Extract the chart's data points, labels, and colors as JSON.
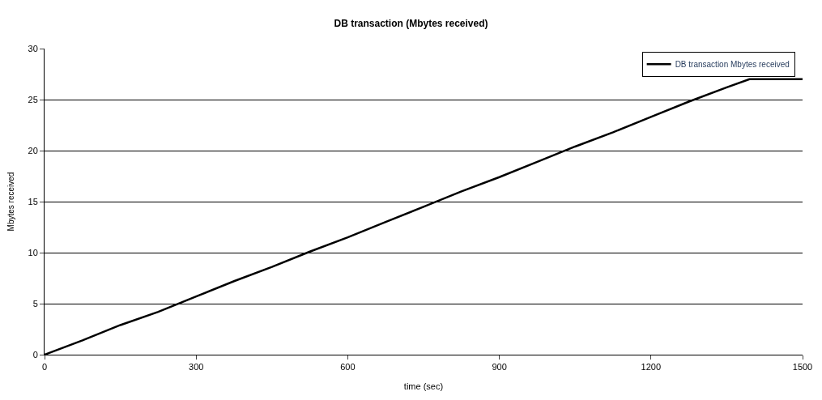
{
  "chart_data": {
    "type": "line",
    "title": "DB transaction (Mbytes received)",
    "xlabel": "time (sec)",
    "ylabel": "Mbytes received",
    "x": [
      0,
      75,
      150,
      225,
      300,
      375,
      450,
      525,
      600,
      675,
      750,
      825,
      900,
      975,
      1050,
      1125,
      1200,
      1275,
      1350,
      1395,
      1500
    ],
    "series": [
      {
        "name": "DB transaction Mbytes received",
        "color": "#000000",
        "values": [
          0,
          1.4,
          2.9,
          4.2,
          5.7,
          7.2,
          8.6,
          10.1,
          11.5,
          13,
          14.5,
          16,
          17.4,
          18.9,
          20.4,
          21.8,
          23.3,
          24.8,
          26.2,
          27,
          27
        ]
      }
    ],
    "xlim": [
      0,
      1500
    ],
    "xticks": [
      0,
      300,
      600,
      900,
      1200,
      1500
    ],
    "ylim": [
      0,
      30
    ],
    "yticks": [
      0,
      5,
      10,
      15,
      20,
      25,
      30
    ],
    "grid": "y",
    "legend": "top right",
    "marker": "none",
    "line_style": "solid"
  }
}
